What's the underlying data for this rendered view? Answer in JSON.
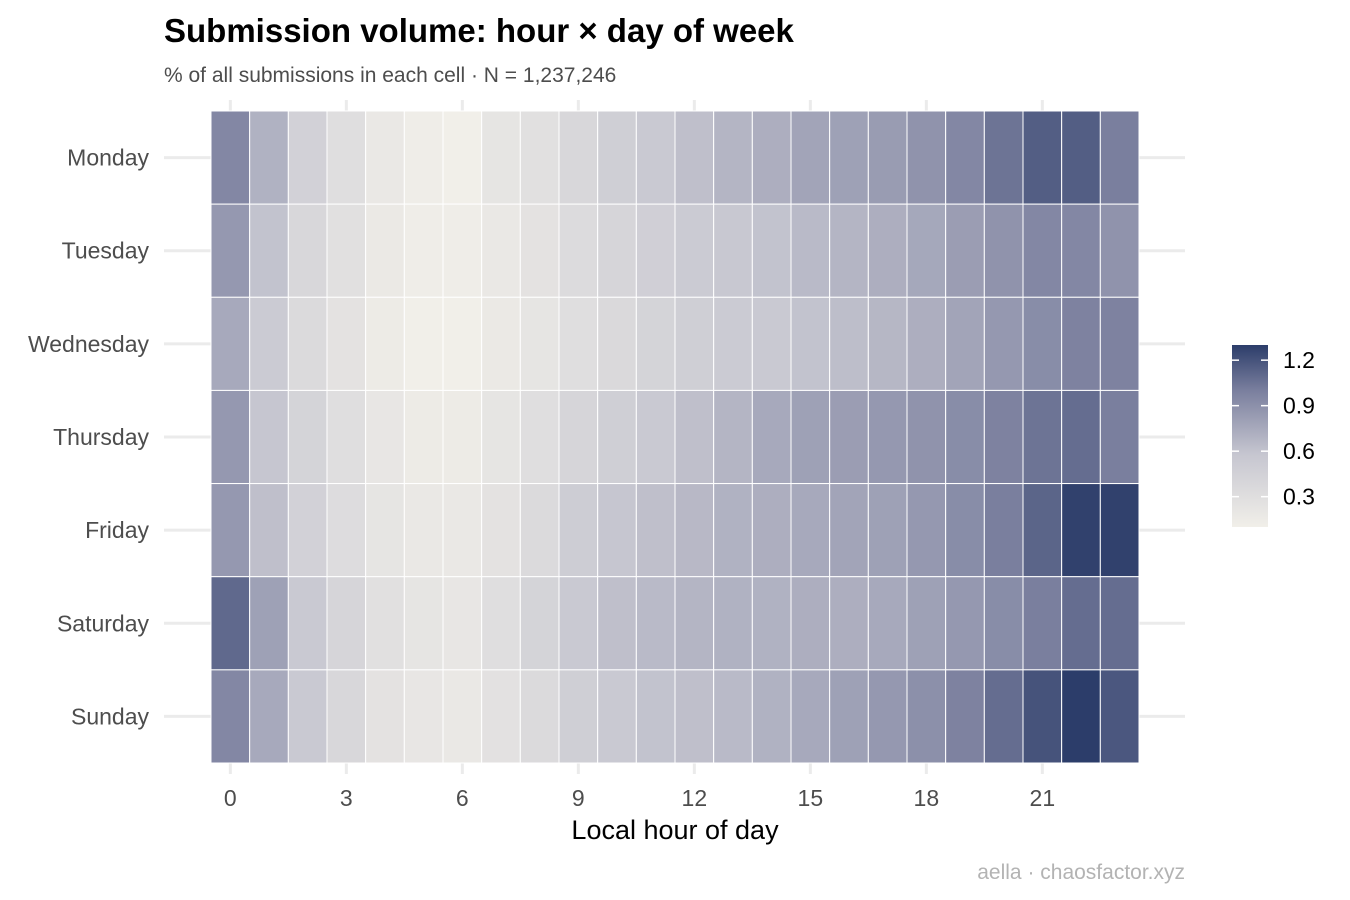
{
  "chart_data": {
    "type": "heatmap",
    "title": "Submission volume: hour × day of week",
    "subtitle": "% of all submissions in each cell · N = 1,237,246",
    "xlabel": "Local hour of day",
    "ylabel": "",
    "caption": "aella · chaosfactor.xyz",
    "x": [
      0,
      1,
      2,
      3,
      4,
      5,
      6,
      7,
      8,
      9,
      10,
      11,
      12,
      13,
      14,
      15,
      16,
      17,
      18,
      19,
      20,
      21,
      22,
      23
    ],
    "x_ticks": [
      0,
      3,
      6,
      9,
      12,
      15,
      18,
      21
    ],
    "y": [
      "Monday",
      "Tuesday",
      "Wednesday",
      "Thursday",
      "Friday",
      "Saturday",
      "Sunday"
    ],
    "values": [
      [
        0.95,
        0.7,
        0.45,
        0.3,
        0.18,
        0.12,
        0.1,
        0.22,
        0.28,
        0.38,
        0.48,
        0.55,
        0.62,
        0.68,
        0.72,
        0.78,
        0.8,
        0.83,
        0.88,
        0.95,
        1.05,
        1.15,
        1.15,
        1.0
      ],
      [
        0.85,
        0.6,
        0.38,
        0.28,
        0.17,
        0.12,
        0.12,
        0.18,
        0.25,
        0.33,
        0.4,
        0.47,
        0.52,
        0.56,
        0.6,
        0.65,
        0.68,
        0.72,
        0.76,
        0.82,
        0.88,
        0.95,
        0.95,
        0.88
      ],
      [
        0.75,
        0.52,
        0.35,
        0.25,
        0.15,
        0.1,
        0.1,
        0.17,
        0.22,
        0.3,
        0.36,
        0.42,
        0.48,
        0.52,
        0.55,
        0.6,
        0.63,
        0.67,
        0.72,
        0.78,
        0.85,
        0.92,
        0.98,
        0.98
      ],
      [
        0.85,
        0.58,
        0.42,
        0.3,
        0.2,
        0.15,
        0.15,
        0.22,
        0.3,
        0.4,
        0.48,
        0.55,
        0.62,
        0.68,
        0.75,
        0.8,
        0.82,
        0.85,
        0.88,
        0.92,
        0.98,
        1.05,
        1.08,
        1.0
      ],
      [
        0.85,
        0.62,
        0.45,
        0.32,
        0.22,
        0.18,
        0.18,
        0.25,
        0.35,
        0.5,
        0.58,
        0.62,
        0.66,
        0.7,
        0.72,
        0.75,
        0.78,
        0.8,
        0.85,
        0.92,
        1.0,
        1.12,
        1.28,
        1.28
      ],
      [
        1.1,
        0.8,
        0.55,
        0.4,
        0.28,
        0.22,
        0.2,
        0.3,
        0.42,
        0.55,
        0.62,
        0.65,
        0.68,
        0.7,
        0.7,
        0.72,
        0.72,
        0.75,
        0.8,
        0.85,
        0.92,
        1.0,
        1.08,
        1.08
      ],
      [
        0.95,
        0.75,
        0.55,
        0.38,
        0.25,
        0.2,
        0.18,
        0.26,
        0.35,
        0.48,
        0.55,
        0.6,
        0.62,
        0.65,
        0.7,
        0.75,
        0.8,
        0.85,
        0.9,
        0.98,
        1.08,
        1.2,
        1.3,
        1.18
      ]
    ],
    "colorbar": {
      "ticks": [
        0.3,
        0.6,
        0.9,
        1.2
      ],
      "range": [
        0.1,
        1.3
      ],
      "low_color": "#f1efe9",
      "mid_color": "#c6c6d0",
      "mid2_color": "#7a7f9e",
      "high_color": "#2c3d6a"
    },
    "legend_position": "right",
    "grid": true
  }
}
